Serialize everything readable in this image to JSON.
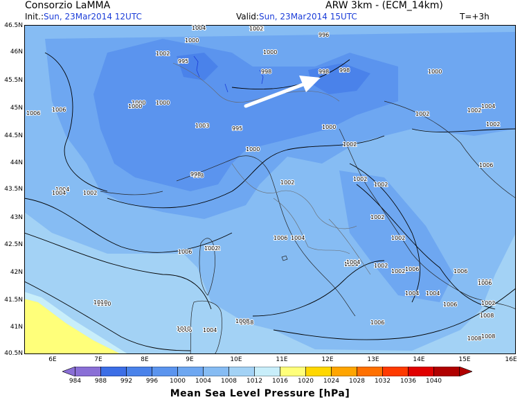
{
  "header": {
    "source": "Consorzio LaMMA",
    "model": "ARW 3km - (ECM_14km)",
    "init_label": "Init.:",
    "init_value": "Sun, 23Mar2014 12UTC",
    "valid_label": "Valid:",
    "valid_value": "Sun, 23Mar2014 15UTC",
    "step": "T=+3h"
  },
  "axes": {
    "lat_labels": [
      "46.5N",
      "46N",
      "45.5N",
      "45N",
      "44.5N",
      "44N",
      "43.5N",
      "43N",
      "42.5N",
      "42N",
      "41.5N",
      "41N",
      "40.5N"
    ],
    "lon_labels": [
      "6E",
      "7E",
      "8E",
      "9E",
      "10E",
      "11E",
      "12E",
      "13E",
      "14E",
      "15E",
      "16E"
    ]
  },
  "colorbar": {
    "title": "Mean Sea Level Pressure [hPa]",
    "levels": [
      "984",
      "988",
      "992",
      "996",
      "1000",
      "1004",
      "1008",
      "1012",
      "1016",
      "1020",
      "1024",
      "1028",
      "1032",
      "1036",
      "1040"
    ],
    "colors": [
      "#8a6fd6",
      "#3c6ee6",
      "#4a82ea",
      "#5b94ee",
      "#6ea7f1",
      "#86bcf3",
      "#a3d2f5",
      "#c8eefa",
      "#ffff7a",
      "#ffd700",
      "#ffa500",
      "#ff7000",
      "#ff3a00",
      "#e00000",
      "#b00000"
    ]
  },
  "isobar_labels": [
    {
      "t": "1006"
    },
    {
      "t": "1004"
    },
    {
      "t": "1002"
    },
    {
      "t": "998"
    },
    {
      "t": "1010"
    },
    {
      "t": "1002"
    },
    {
      "t": "1008"
    },
    {
      "t": "1002"
    },
    {
      "t": "1004"
    },
    {
      "t": "1000"
    },
    {
      "t": "995"
    },
    {
      "t": "998"
    },
    {
      "t": "1000"
    },
    {
      "t": "996"
    },
    {
      "t": "998"
    },
    {
      "t": "1000"
    },
    {
      "t": "1004"
    },
    {
      "t": "1000"
    },
    {
      "t": "1002"
    },
    {
      "t": "1006"
    },
    {
      "t": "1000"
    },
    {
      "t": "1002"
    },
    {
      "t": "1002"
    },
    {
      "t": "1008"
    },
    {
      "t": "1003"
    },
    {
      "t": "995"
    },
    {
      "t": "1000"
    },
    {
      "t": "1002"
    },
    {
      "t": "1002"
    },
    {
      "t": "1000"
    },
    {
      "t": "998"
    },
    {
      "t": "1002"
    },
    {
      "t": "1004"
    },
    {
      "t": "1006"
    },
    {
      "t": "1002"
    },
    {
      "t": "1006"
    },
    {
      "t": "1004"
    },
    {
      "t": "1002"
    },
    {
      "t": "1002"
    },
    {
      "t": "1006"
    },
    {
      "t": "1000"
    },
    {
      "t": "998"
    },
    {
      "t": "1002"
    },
    {
      "t": "1002"
    },
    {
      "t": "1004"
    },
    {
      "t": "1002"
    },
    {
      "t": "1006"
    },
    {
      "t": "1006"
    },
    {
      "t": "1004"
    },
    {
      "t": "1006"
    },
    {
      "t": "1004"
    },
    {
      "t": "1002"
    },
    {
      "t": "1002"
    },
    {
      "t": "1010"
    },
    {
      "t": "1008"
    },
    {
      "t": "1006"
    },
    {
      "t": "1004"
    },
    {
      "t": "1006"
    },
    {
      "t": "1006"
    },
    {
      "t": "1008"
    },
    {
      "t": "1008"
    },
    {
      "t": "1006"
    },
    {
      "t": "1004"
    },
    {
      "t": "1008"
    },
    {
      "t": "1010"
    },
    {
      "t": "1002"
    }
  ],
  "wind_arrow": {
    "icon": "wind-arrow-icon",
    "color": "#ffffff"
  }
}
